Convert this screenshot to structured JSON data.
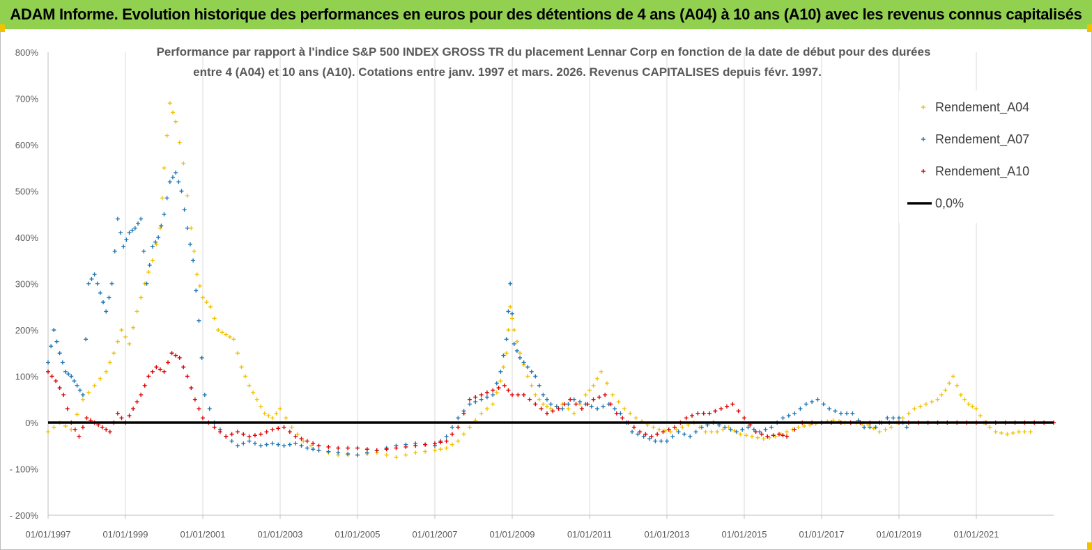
{
  "header": {
    "title": "ADAM Informe. Evolution historique des performances en euros pour des détentions de 4 ans (A04) à 10 ans (A10) avec les revenus connus capitalisés"
  },
  "chart_data": {
    "type": "scatter",
    "title_line1": "Performance par rapport à l'indice S&P 500 INDEX GROSS TR  du placement Lennar Corp en fonction de la date de début pour des durées",
    "title_line2": "entre 4 (A04) et 10 ans (A10). Cotations entre janv. 1997 et mars. 2026. Revenus CAPITALISES depuis févr. 1997.",
    "xlabel": "",
    "ylabel": "",
    "xlim": [
      1997.0,
      2023.0
    ],
    "ylim": [
      -200,
      800
    ],
    "y_ticks": [
      -200,
      -100,
      0,
      100,
      200,
      300,
      400,
      500,
      600,
      700,
      800
    ],
    "y_tick_labels": [
      "- 200%",
      "- 100%",
      "0%",
      "100%",
      "200%",
      "300%",
      "400%",
      "500%",
      "600%",
      "700%",
      "800%"
    ],
    "x_ticks": [
      1997,
      1999,
      2001,
      2003,
      2005,
      2007,
      2009,
      2011,
      2013,
      2015,
      2017,
      2019,
      2021
    ],
    "x_tick_labels": [
      "01/01/1997",
      "01/01/1999",
      "01/01/2001",
      "01/01/2003",
      "01/01/2005",
      "01/01/2007",
      "01/01/2009",
      "01/01/2011",
      "01/01/2013",
      "01/01/2015",
      "01/01/2017",
      "01/01/2019",
      "01/01/2021"
    ],
    "grid": "vertical",
    "legend_position": "top-right",
    "series": [
      {
        "name": "Rendement_A04",
        "color": "#f2c200",
        "marker": "+",
        "x": [
          1997.0,
          1997.3,
          1997.6,
          1997.9,
          1998.2,
          1998.5,
          1998.7,
          1998.9,
          1999.1,
          1999.3,
          1999.5,
          1999.7,
          1999.9,
          2000.0,
          2000.15,
          2000.3,
          2000.5,
          2000.7,
          2000.85,
          2001.0,
          2001.2,
          2001.4,
          2001.6,
          2001.8,
          2002.0,
          2002.2,
          2002.4,
          2002.6,
          2002.8,
          2003.0,
          2003.3,
          2003.6,
          2004.0,
          2004.5,
          2005.0,
          2005.5,
          2006.0,
          2006.5,
          2007.0,
          2007.3,
          2007.6,
          2007.9,
          2008.2,
          2008.5,
          2008.7,
          2008.85,
          2008.95,
          2009.05,
          2009.2,
          2009.4,
          2009.6,
          2009.8,
          2010.0,
          2010.3,
          2010.6,
          2010.9,
          2011.1,
          2011.3,
          2011.6,
          2011.9,
          2012.2,
          2012.5,
          2012.8,
          2013.1,
          2013.4,
          2013.7,
          2014.0,
          2014.3,
          2014.6,
          2014.9,
          2015.2,
          2015.5,
          2015.8,
          2016.1,
          2016.4,
          2016.7,
          2017.0,
          2017.3,
          2017.6,
          2017.9,
          2018.2,
          2018.5,
          2018.8,
          2019.1,
          2019.4,
          2019.7,
          2020.0,
          2020.2,
          2020.4,
          2020.6,
          2020.8,
          2021.0,
          2021.2,
          2021.5,
          2021.8,
          2022.1,
          2022.4
        ],
        "y": [
          -20,
          0,
          -15,
          50,
          80,
          110,
          150,
          200,
          170,
          240,
          300,
          350,
          420,
          550,
          690,
          650,
          560,
          420,
          320,
          270,
          250,
          200,
          190,
          180,
          120,
          80,
          50,
          20,
          10,
          30,
          -10,
          -40,
          -60,
          -70,
          -70,
          -65,
          -75,
          -65,
          -60,
          -55,
          -40,
          -10,
          20,
          40,
          90,
          150,
          250,
          200,
          150,
          100,
          60,
          40,
          30,
          40,
          20,
          60,
          80,
          110,
          60,
          30,
          10,
          -5,
          -15,
          -20,
          -10,
          0,
          -20,
          -20,
          -10,
          -25,
          -30,
          -35,
          -30,
          -20,
          -10,
          -5,
          0,
          5,
          0,
          0,
          -5,
          -20,
          -10,
          10,
          30,
          40,
          50,
          70,
          100,
          60,
          40,
          30,
          0,
          -20,
          -25,
          -20,
          -20
        ]
      },
      {
        "name": "Rendement_A07",
        "color": "#1f77b4",
        "marker": "+",
        "x": [
          1997.0,
          1997.15,
          1997.3,
          1997.45,
          1997.6,
          1997.75,
          1997.9,
          1998.05,
          1998.2,
          1998.35,
          1998.5,
          1998.65,
          1998.8,
          1998.95,
          1999.1,
          1999.25,
          1999.4,
          1999.55,
          1999.7,
          1999.85,
          2000.0,
          2000.15,
          2000.3,
          2000.45,
          2000.6,
          2000.75,
          2000.9,
          2001.05,
          2001.3,
          2001.6,
          2001.9,
          2002.2,
          2002.5,
          2002.8,
          2003.1,
          2003.4,
          2003.7,
          2004.0,
          2004.5,
          2005.0,
          2005.5,
          2006.0,
          2006.5,
          2007.0,
          2007.3,
          2007.6,
          2007.9,
          2008.2,
          2008.5,
          2008.7,
          2008.85,
          2008.95,
          2009.05,
          2009.2,
          2009.4,
          2009.6,
          2009.8,
          2010.0,
          2010.3,
          2010.6,
          2010.9,
          2011.2,
          2011.5,
          2011.8,
          2012.1,
          2012.4,
          2012.7,
          2013.0,
          2013.3,
          2013.6,
          2013.9,
          2014.2,
          2014.5,
          2014.8,
          2015.1,
          2015.4,
          2015.7,
          2016.0,
          2016.3,
          2016.6,
          2016.9,
          2017.2,
          2017.5,
          2017.8,
          2018.1,
          2018.4,
          2018.7,
          2019.0,
          2019.2
        ],
        "y": [
          130,
          200,
          150,
          110,
          100,
          80,
          60,
          300,
          320,
          280,
          240,
          300,
          440,
          380,
          410,
          420,
          440,
          300,
          380,
          400,
          450,
          520,
          540,
          500,
          420,
          350,
          220,
          60,
          0,
          -30,
          -50,
          -40,
          -50,
          -45,
          -50,
          -45,
          -55,
          -60,
          -65,
          -70,
          -60,
          -50,
          -45,
          -50,
          -30,
          10,
          40,
          50,
          60,
          110,
          180,
          300,
          170,
          140,
          120,
          100,
          60,
          40,
          30,
          50,
          40,
          30,
          40,
          20,
          -20,
          -30,
          -40,
          -40,
          -20,
          -30,
          -10,
          0,
          -10,
          -20,
          -10,
          -20,
          -10,
          10,
          20,
          40,
          50,
          30,
          20,
          20,
          -10,
          -10,
          10,
          10,
          -10
        ]
      },
      {
        "name": "Rendement_A10",
        "color": "#e00000",
        "marker": "+",
        "x": [
          1997.0,
          1997.2,
          1997.4,
          1997.6,
          1997.8,
          1998.0,
          1998.2,
          1998.4,
          1998.6,
          1998.8,
          1999.0,
          1999.2,
          1999.4,
          1999.6,
          1999.8,
          2000.0,
          2000.2,
          2000.4,
          2000.6,
          2000.8,
          2001.0,
          2001.3,
          2001.6,
          2001.9,
          2002.2,
          2002.5,
          2002.8,
          2003.1,
          2003.4,
          2003.7,
          2004.0,
          2004.5,
          2005.0,
          2005.5,
          2006.0,
          2006.5,
          2007.0,
          2007.3,
          2007.6,
          2007.9,
          2008.2,
          2008.5,
          2008.8,
          2009.0,
          2009.3,
          2009.6,
          2009.9,
          2010.2,
          2010.5,
          2010.8,
          2011.1,
          2011.4,
          2011.7,
          2012.0,
          2012.3,
          2012.6,
          2012.9,
          2013.2,
          2013.5,
          2013.8,
          2014.1,
          2014.4,
          2014.7,
          2015.0,
          2015.3,
          2015.6,
          2015.9,
          2016.1,
          2016.5,
          2017.0,
          2017.5,
          2018.0,
          2018.5,
          2019.0,
          2019.5,
          2020.0,
          2020.5,
          2021.0,
          2021.5,
          2022.0,
          2022.5,
          2023.0
        ],
        "y": [
          110,
          90,
          60,
          0,
          -30,
          10,
          0,
          -10,
          -20,
          20,
          0,
          30,
          60,
          100,
          120,
          110,
          150,
          140,
          100,
          50,
          10,
          -10,
          -30,
          -20,
          -30,
          -25,
          -15,
          -10,
          -30,
          -40,
          -50,
          -55,
          -55,
          -60,
          -55,
          -50,
          -45,
          -40,
          -10,
          50,
          60,
          70,
          80,
          60,
          60,
          40,
          20,
          30,
          50,
          30,
          50,
          60,
          20,
          0,
          -20,
          -30,
          -20,
          -10,
          10,
          20,
          20,
          30,
          40,
          10,
          -20,
          -30,
          -25,
          -30,
          0,
          0,
          0,
          0,
          0,
          0,
          0,
          0,
          0,
          0,
          0,
          0,
          0,
          0
        ]
      },
      {
        "name": "0,0%",
        "color": "#000000",
        "marker": "line",
        "x": [
          1997.0,
          2023.0
        ],
        "y": [
          0,
          0
        ]
      }
    ]
  }
}
